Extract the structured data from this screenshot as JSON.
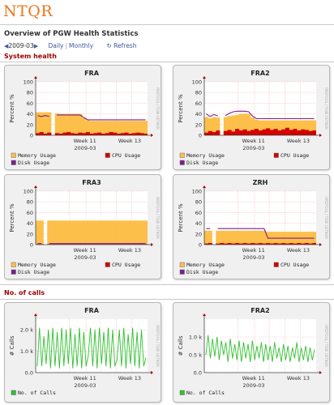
{
  "app": {
    "logo": "NTQR",
    "subtitle": "Overview of PGW Health Statistics"
  },
  "controls": {
    "period": "2009-03",
    "daily": "Daily",
    "monthly": "Monthly",
    "refresh": "Refresh"
  },
  "sections": {
    "health": "System health",
    "calls": "No. of calls"
  },
  "colors": {
    "memory": "#fcbf4a",
    "cpu": "#d40000",
    "disk": "#7c1f8e",
    "calls": "#2fc12f",
    "accent": "#a00000"
  },
  "health_legend": {
    "memory": "Memory Usage",
    "cpu": "CPU Usage",
    "disk": "Disk Usage"
  },
  "calls_legend": {
    "calls": "No. of Calls"
  },
  "watermark": "RRDTOOL / TOBI OETIKER",
  "chart_data": [
    {
      "type": "area",
      "title": "FRA",
      "ylabel": "Percent %",
      "xlabel": "2009-03",
      "ylim": [
        0,
        100
      ],
      "yticks": [
        "100",
        "80",
        "60",
        "40",
        "20",
        "0"
      ],
      "xticks": [
        "Week 11",
        "Week 13"
      ],
      "series": [
        {
          "name": "Memory Usage",
          "values": [
            43,
            43,
            43,
            43,
            0,
            41,
            40,
            40,
            40,
            40,
            40,
            40,
            33,
            28,
            27,
            27,
            27,
            27,
            27,
            27,
            27,
            27,
            27,
            27,
            27,
            27,
            27,
            27,
            27
          ]
        },
        {
          "name": "CPU Usage",
          "values": [
            4,
            6,
            3,
            5,
            0,
            4,
            3,
            5,
            6,
            4,
            3,
            5,
            4,
            6,
            3,
            4,
            5,
            3,
            4,
            6,
            5,
            3,
            4,
            5,
            3,
            4,
            5,
            4,
            3
          ]
        },
        {
          "name": "Disk Usage",
          "values": [
            37,
            35,
            37,
            35,
            0,
            38,
            38,
            38,
            38,
            38,
            38,
            38,
            33,
            29,
            29,
            29,
            29,
            29,
            29,
            29,
            29,
            29,
            29,
            29,
            29,
            29,
            29,
            29,
            29
          ]
        }
      ]
    },
    {
      "type": "area",
      "title": "FRA2",
      "ylabel": "Percent %",
      "xlabel": "2009-03",
      "ylim": [
        0,
        100
      ],
      "yticks": [
        "100",
        "80",
        "60",
        "40",
        "20",
        "0"
      ],
      "xticks": [
        "Week 11",
        "Week 13"
      ],
      "series": [
        {
          "name": "Memory Usage",
          "values": [
            34,
            32,
            34,
            33,
            0,
            34,
            36,
            37,
            38,
            40,
            40,
            40,
            33,
            29,
            28,
            28,
            28,
            28,
            28,
            28,
            28,
            28,
            28,
            28,
            28,
            28,
            28,
            28,
            28
          ]
        },
        {
          "name": "CPU Usage",
          "values": [
            5,
            8,
            6,
            9,
            0,
            8,
            10,
            7,
            12,
            9,
            11,
            8,
            10,
            12,
            9,
            11,
            13,
            10,
            12,
            9,
            11,
            14,
            10,
            12,
            9,
            11,
            10,
            8,
            9
          ]
        },
        {
          "name": "Disk Usage",
          "values": [
            40,
            35,
            39,
            36,
            0,
            37,
            41,
            44,
            45,
            45,
            45,
            44,
            36,
            31,
            31,
            31,
            31,
            31,
            31,
            31,
            31,
            31,
            31,
            31,
            31,
            31,
            31,
            31,
            31
          ]
        }
      ]
    },
    {
      "type": "area",
      "title": "FRA3",
      "ylabel": "Percent %",
      "xlabel": "2009-03",
      "ylim": [
        0,
        100
      ],
      "yticks": [
        "100",
        "80",
        "60",
        "40",
        "20",
        "0"
      ],
      "xticks": [
        "Week 11",
        "Week 13"
      ],
      "series": [
        {
          "name": "Memory Usage",
          "values": [
            45,
            45,
            0,
            45,
            45,
            45,
            45,
            45,
            45,
            45,
            45,
            45,
            45,
            45,
            45,
            45,
            45,
            45,
            45,
            45,
            45,
            45,
            45,
            45,
            45,
            45,
            45,
            45,
            45
          ]
        },
        {
          "name": "CPU Usage",
          "values": [
            1,
            1,
            0,
            1,
            1,
            1,
            1,
            1,
            1,
            1,
            1,
            1,
            1,
            1,
            1,
            1,
            1,
            1,
            1,
            1,
            1,
            1,
            1,
            1,
            1,
            1,
            1,
            1,
            1
          ]
        },
        {
          "name": "Disk Usage",
          "values": [
            2,
            2,
            0,
            2,
            2,
            2,
            2,
            2,
            2,
            2,
            2,
            2,
            2,
            2,
            2,
            2,
            2,
            2,
            2,
            2,
            2,
            2,
            2,
            2,
            2,
            2,
            2,
            2,
            2
          ]
        }
      ]
    },
    {
      "type": "area",
      "title": "ZRH",
      "ylabel": "Percent %",
      "xlabel": "2009-03",
      "ylim": [
        0,
        100
      ],
      "yticks": [
        "100",
        "80",
        "60",
        "40",
        "20",
        "0"
      ],
      "xticks": [
        "Week 11",
        "Week 13"
      ],
      "series": [
        {
          "name": "Memory Usage",
          "values": [
            26,
            26,
            0,
            26,
            26,
            26,
            26,
            26,
            26,
            26,
            26,
            26,
            26,
            26,
            26,
            26,
            24,
            24,
            24,
            24,
            24,
            24,
            24,
            24,
            24,
            24,
            24,
            24,
            24
          ]
        },
        {
          "name": "CPU Usage",
          "values": [
            2,
            3,
            0,
            2,
            3,
            2,
            3,
            2,
            3,
            2,
            3,
            2,
            3,
            2,
            3,
            2,
            3,
            2,
            3,
            2,
            3,
            2,
            3,
            2,
            3,
            2,
            3,
            2,
            3
          ]
        },
        {
          "name": "Disk Usage",
          "values": [
            30,
            30,
            0,
            30,
            30,
            30,
            30,
            30,
            30,
            30,
            30,
            30,
            30,
            30,
            30,
            30,
            12,
            12,
            12,
            12,
            12,
            12,
            12,
            12,
            12,
            12,
            12,
            12,
            12
          ]
        }
      ]
    },
    {
      "type": "line",
      "title": "FRA",
      "ylabel": "# Calls",
      "xlabel": "2009-03",
      "ylim": [
        0,
        2500
      ],
      "yticks": [
        "2.0 k",
        "1.0 k",
        "0.0"
      ],
      "ytickvalues": [
        2000,
        1000,
        0
      ],
      "xticks": [
        "Week 11",
        "Week 13"
      ],
      "series": [
        {
          "name": "No. of Calls",
          "values": [
            300,
            2100,
            300,
            1700,
            400,
            2000,
            200,
            2100,
            300,
            1900,
            200,
            2100,
            300,
            2000,
            400,
            2100,
            200,
            1800,
            300,
            2100,
            200,
            1900,
            300,
            800,
            2100,
            300,
            2000,
            200,
            2100,
            400,
            1900,
            300,
            2100,
            200,
            2000,
            300,
            600,
            2000,
            300,
            2100,
            200,
            1800,
            400,
            2100,
            300,
            1900,
            200,
            2000,
            300,
            700
          ]
        }
      ]
    },
    {
      "type": "line",
      "title": "FRA2",
      "ylabel": "# Calls",
      "xlabel": "2009-03",
      "ylim": [
        0,
        1500
      ],
      "yticks": [
        "1.0 k",
        "0.5 k",
        "0.0"
      ],
      "ytickvalues": [
        1000,
        500,
        0
      ],
      "xticks": [
        "Week 11",
        "Week 13"
      ],
      "series": [
        {
          "name": "No. of Calls",
          "values": [
            500,
            1050,
            400,
            950,
            450,
            1000,
            350,
            900,
            500,
            850,
            300,
            950,
            400,
            800,
            350,
            900,
            300,
            850,
            400,
            800,
            300,
            900,
            350,
            750,
            400,
            850,
            300,
            800,
            350,
            750,
            300,
            850,
            400,
            700,
            300,
            800,
            350,
            750,
            300,
            700,
            400,
            850,
            300,
            700,
            350,
            750,
            300,
            700,
            350,
            650
          ]
        }
      ]
    }
  ]
}
